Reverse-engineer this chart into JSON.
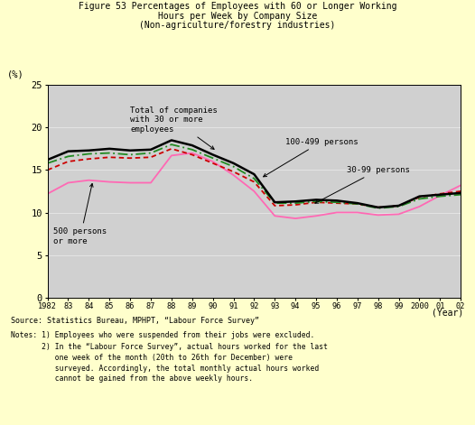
{
  "title_line1": "Figure 53 Percentages of Employees with 60 or Longer Working",
  "title_line2": "Hours per Week by Company Size",
  "title_line3": "(Non-agriculture/forestry industries)",
  "ylabel": "(%)",
  "xlabel": "(Year)",
  "years": [
    1982,
    1983,
    1984,
    1985,
    1986,
    1987,
    1988,
    1989,
    1990,
    1991,
    1992,
    1993,
    1994,
    1995,
    1996,
    1997,
    1998,
    1999,
    2000,
    2001,
    2002
  ],
  "total_30plus": [
    16.2,
    17.2,
    17.3,
    17.5,
    17.3,
    17.4,
    18.5,
    17.9,
    16.8,
    15.8,
    14.5,
    11.2,
    11.3,
    11.5,
    11.4,
    11.1,
    10.6,
    10.8,
    11.9,
    12.1,
    12.3
  ],
  "line_100_499": [
    15.8,
    16.6,
    16.9,
    17.0,
    16.8,
    17.0,
    18.0,
    17.4,
    16.4,
    15.4,
    14.0,
    11.1,
    11.1,
    11.3,
    11.2,
    11.0,
    10.5,
    10.7,
    11.6,
    11.9,
    12.1
  ],
  "line_30_99": [
    15.0,
    16.0,
    16.3,
    16.5,
    16.4,
    16.5,
    17.5,
    16.8,
    15.8,
    14.8,
    13.6,
    10.8,
    10.9,
    11.2,
    11.1,
    11.0,
    10.6,
    10.8,
    11.8,
    12.2,
    12.5
  ],
  "line_500plus": [
    12.2,
    13.5,
    13.8,
    13.6,
    13.5,
    13.5,
    16.7,
    17.0,
    16.0,
    14.4,
    12.5,
    9.6,
    9.3,
    9.6,
    10.0,
    10.0,
    9.7,
    9.8,
    10.7,
    12.0,
    13.2
  ],
  "color_total": "#000000",
  "color_100_499": "#228B22",
  "color_30_99": "#cc0000",
  "color_500plus": "#ff69b4",
  "bg_color": "#d0d0d0",
  "fig_bg": "#ffffcc",
  "ylim": [
    0,
    25
  ],
  "yticks": [
    0,
    5,
    10,
    15,
    20,
    25
  ],
  "xtick_labels": [
    "1982",
    "83",
    "84",
    "85",
    "86",
    "87",
    "88",
    "89",
    "90",
    "91",
    "92",
    "93",
    "94",
    "95",
    "96",
    "97",
    "98",
    "99",
    "2000",
    "01",
    "02"
  ],
  "source_text": "Source: Statistics Bureau, MPHPT, “Labour Force Survey”",
  "note1": "Notes: 1) Employees who were suspended from their jobs were excluded.",
  "note2": "       2) In the “Labour Force Survey”, actual hours worked for the last",
  "note3": "          one week of the month (20th to 26th for December) were",
  "note4": "          surveyed. Accordingly, the total monthly actual hours worked",
  "note5": "          cannot be gained from the above weekly hours."
}
